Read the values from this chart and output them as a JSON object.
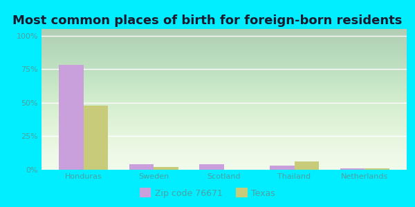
{
  "title": "Most common places of birth for foreign-born residents",
  "categories": [
    "Honduras",
    "Sweden",
    "Scotland",
    "Thailand",
    "Netherlands"
  ],
  "zip_values": [
    78,
    4,
    4,
    3,
    1
  ],
  "texas_values": [
    48,
    2,
    0,
    6,
    1
  ],
  "zip_color": "#c9a0dc",
  "texas_color": "#c8cc7a",
  "zip_label": "Zip code 76671",
  "texas_label": "Texas",
  "yticks": [
    0,
    25,
    50,
    75,
    100
  ],
  "ytick_labels": [
    "0%",
    "25%",
    "50%",
    "75%",
    "100%"
  ],
  "ylim": [
    0,
    105
  ],
  "bg_top": "#f0fae8",
  "bg_bottom": "#e0f5d0",
  "outer_background": "#00eeff",
  "title_fontsize": 13,
  "bar_width": 0.35,
  "grid_color": "#ffffff",
  "tick_color": "#4da0a0",
  "label_color": "#4da0a0"
}
